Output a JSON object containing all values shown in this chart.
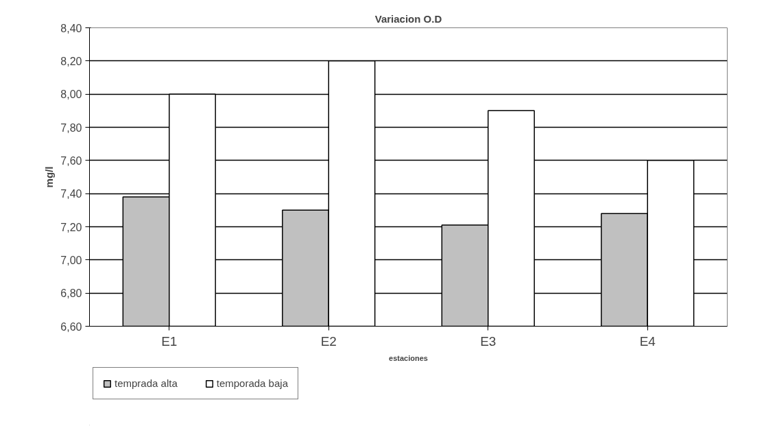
{
  "chart_data": {
    "type": "bar",
    "title": "Variacion O.D",
    "xlabel": "estaciones",
    "ylabel": "mg/l",
    "categories": [
      "E1",
      "E2",
      "E3",
      "E4"
    ],
    "series": [
      {
        "name": "temprada alta",
        "color": "#c0c0c0",
        "values": [
          7.38,
          7.3,
          7.21,
          7.28
        ]
      },
      {
        "name": "temporada baja",
        "color": "#ffffff",
        "values": [
          8.0,
          8.2,
          7.9,
          7.6
        ]
      }
    ],
    "ylim": [
      6.6,
      8.4
    ],
    "yticks": [
      {
        "value": 6.6,
        "label": "6,60"
      },
      {
        "value": 6.8,
        "label": "6,80"
      },
      {
        "value": 7.0,
        "label": "7,00"
      },
      {
        "value": 7.2,
        "label": "7,20"
      },
      {
        "value": 7.4,
        "label": "7,40"
      },
      {
        "value": 7.6,
        "label": "7,60"
      },
      {
        "value": 7.8,
        "label": "7,80"
      },
      {
        "value": 8.0,
        "label": "8,00"
      },
      {
        "value": 8.2,
        "label": "8,20"
      },
      {
        "value": 8.4,
        "label": "8,40"
      }
    ],
    "grid": "y",
    "legend": "bottom"
  }
}
